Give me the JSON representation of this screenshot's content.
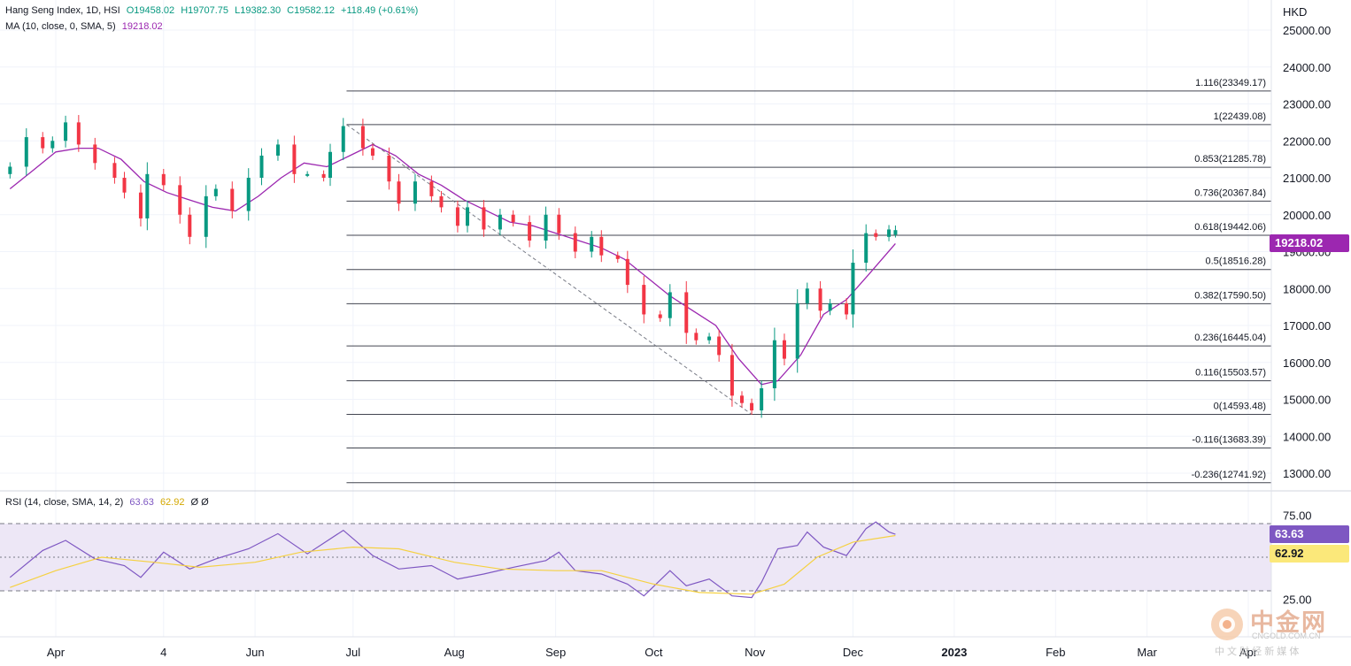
{
  "header": {
    "symbol": "Hang Seng Index, 1D, HSI",
    "open": "O19458.02",
    "high": "H19707.75",
    "low": "L19382.30",
    "close": "C19582.12",
    "change": "+118.49 (+0.61%)",
    "ma_label": "MA (10, close, 0, SMA, 5)",
    "ma_value": "19218.02",
    "currency": "HKD"
  },
  "price_badge": "19218.02",
  "rsi": {
    "label": "RSI (14, close, SMA, 14, 2)",
    "value": "63.63",
    "ma_value": "62.92",
    "extra": "Ø Ø",
    "badge_rsi": "63.63",
    "badge_ma": "62.92",
    "ticks": [
      "75.00",
      "25.00"
    ]
  },
  "watermark": {
    "name": "中金网",
    "domain": "CNGOLD.COM.CN",
    "tagline": "中 文 财 经 新 媒 体"
  },
  "colors": {
    "up": "#089981",
    "down": "#f23645",
    "ma": "#9c27b0",
    "rsi": "#7e57c2",
    "rsi_ma": "#f5d142",
    "rsi_band": "#ede7f6",
    "fib_line": "#434651"
  },
  "chart_data": {
    "type": "candlestick",
    "title": "Hang Seng Index, 1D, HSI",
    "ylabel": "HKD",
    "ylim": [
      12500,
      25300
    ],
    "y_ticks": [
      "25000.00",
      "24000.00",
      "23000.00",
      "22000.00",
      "21000.00",
      "20000.00",
      "19000.00",
      "18000.00",
      "17000.00",
      "16000.00",
      "15000.00",
      "14000.00",
      "13000.00"
    ],
    "x_tick_labels": [
      "Apr",
      "4",
      "Jun",
      "Jul",
      "Aug",
      "Sep",
      "Oct",
      "Nov",
      "Dec",
      "2023",
      "Feb",
      "Mar",
      "Apr"
    ],
    "x_ticks": [
      "2022-04-01",
      "2022-05-04",
      "2022-06-01",
      "2022-07-01",
      "2022-08-01",
      "2022-09-01",
      "2022-10-01",
      "2022-11-01",
      "2022-12-01",
      "2023-01-01",
      "2023-02-01",
      "2023-03-01",
      "2023-04-01"
    ],
    "fibonacci": [
      {
        "label": "1.116(23349.17)",
        "value": 23349.17
      },
      {
        "label": "1(22439.08)",
        "value": 22439.08
      },
      {
        "label": "0.853(21285.78)",
        "value": 21285.78
      },
      {
        "label": "0.736(20367.84)",
        "value": 20367.84
      },
      {
        "label": "0.618(19442.06)",
        "value": 19442.06
      },
      {
        "label": "0.5(18516.28)",
        "value": 18516.28
      },
      {
        "label": "0.382(17590.50)",
        "value": 17590.5
      },
      {
        "label": "0.236(16445.04)",
        "value": 16445.04
      },
      {
        "label": "0.116(15503.57)",
        "value": 15503.57
      },
      {
        "label": "0(14593.48)",
        "value": 14593.48
      },
      {
        "label": "-0.116(13683.39)",
        "value": 13683.39
      },
      {
        "label": "-0.236(12741.92)",
        "value": 12741.92
      }
    ],
    "fib_trendline": {
      "from": [
        "2022-06-29",
        22439.08
      ],
      "to": [
        "2022-10-31",
        14593.48
      ]
    },
    "close_series": [
      [
        "2022-03-18",
        21300
      ],
      [
        "2022-03-23",
        22100
      ],
      [
        "2022-03-28",
        21800
      ],
      [
        "2022-03-31",
        22000
      ],
      [
        "2022-04-04",
        22500
      ],
      [
        "2022-04-08",
        21900
      ],
      [
        "2022-04-13",
        21400
      ],
      [
        "2022-04-19",
        21000
      ],
      [
        "2022-04-22",
        20600
      ],
      [
        "2022-04-27",
        19900
      ],
      [
        "2022-04-29",
        21100
      ],
      [
        "2022-05-04",
        20800
      ],
      [
        "2022-05-09",
        20000
      ],
      [
        "2022-05-12",
        19400
      ],
      [
        "2022-05-17",
        20500
      ],
      [
        "2022-05-20",
        20700
      ],
      [
        "2022-05-25",
        20100
      ],
      [
        "2022-05-30",
        21000
      ],
      [
        "2022-06-03",
        21600
      ],
      [
        "2022-06-08",
        21900
      ],
      [
        "2022-06-13",
        21100
      ],
      [
        "2022-06-17",
        21100
      ],
      [
        "2022-06-22",
        21000
      ],
      [
        "2022-06-24",
        21700
      ],
      [
        "2022-06-28",
        22400
      ],
      [
        "2022-07-04",
        21800
      ],
      [
        "2022-07-07",
        21600
      ],
      [
        "2022-07-12",
        20900
      ],
      [
        "2022-07-15",
        20300
      ],
      [
        "2022-07-20",
        20900
      ],
      [
        "2022-07-25",
        20500
      ],
      [
        "2022-07-28",
        20200
      ],
      [
        "2022-08-02",
        19700
      ],
      [
        "2022-08-05",
        20200
      ],
      [
        "2022-08-10",
        19600
      ],
      [
        "2022-08-15",
        20000
      ],
      [
        "2022-08-19",
        19800
      ],
      [
        "2022-08-24",
        19300
      ],
      [
        "2022-08-29",
        20000
      ],
      [
        "2022-09-02",
        19500
      ],
      [
        "2022-09-07",
        19000
      ],
      [
        "2022-09-12",
        19400
      ],
      [
        "2022-09-15",
        18900
      ],
      [
        "2022-09-20",
        18800
      ],
      [
        "2022-09-23",
        18100
      ],
      [
        "2022-09-28",
        17300
      ],
      [
        "2022-10-03",
        17200
      ],
      [
        "2022-10-06",
        17900
      ],
      [
        "2022-10-11",
        16800
      ],
      [
        "2022-10-14",
        16600
      ],
      [
        "2022-10-18",
        16700
      ],
      [
        "2022-10-21",
        16200
      ],
      [
        "2022-10-25",
        15100
      ],
      [
        "2022-10-28",
        14900
      ],
      [
        "2022-10-31",
        14700
      ],
      [
        "2022-11-03",
        15300
      ],
      [
        "2022-11-07",
        16600
      ],
      [
        "2022-11-10",
        16100
      ],
      [
        "2022-11-14",
        17600
      ],
      [
        "2022-11-17",
        18000
      ],
      [
        "2022-11-21",
        17400
      ],
      [
        "2022-11-24",
        17600
      ],
      [
        "2022-11-29",
        17300
      ],
      [
        "2022-12-01",
        18700
      ],
      [
        "2022-12-05",
        19500
      ],
      [
        "2022-12-08",
        19400
      ],
      [
        "2022-12-12",
        19600
      ],
      [
        "2022-12-14",
        19582.12
      ]
    ],
    "ma_series": [
      [
        "2022-03-18",
        20700
      ],
      [
        "2022-03-25",
        21200
      ],
      [
        "2022-04-01",
        21700
      ],
      [
        "2022-04-08",
        21800
      ],
      [
        "2022-04-14",
        21800
      ],
      [
        "2022-04-21",
        21500
      ],
      [
        "2022-04-28",
        20900
      ],
      [
        "2022-05-05",
        20600
      ],
      [
        "2022-05-12",
        20400
      ],
      [
        "2022-05-19",
        20200
      ],
      [
        "2022-05-26",
        20100
      ],
      [
        "2022-06-02",
        20500
      ],
      [
        "2022-06-09",
        21000
      ],
      [
        "2022-06-16",
        21400
      ],
      [
        "2022-06-23",
        21300
      ],
      [
        "2022-06-30",
        21600
      ],
      [
        "2022-07-07",
        21900
      ],
      [
        "2022-07-14",
        21600
      ],
      [
        "2022-07-21",
        21100
      ],
      [
        "2022-07-28",
        20800
      ],
      [
        "2022-08-04",
        20400
      ],
      [
        "2022-08-11",
        20100
      ],
      [
        "2022-08-18",
        19800
      ],
      [
        "2022-08-25",
        19700
      ],
      [
        "2022-09-01",
        19500
      ],
      [
        "2022-09-08",
        19300
      ],
      [
        "2022-09-15",
        19100
      ],
      [
        "2022-09-22",
        18800
      ],
      [
        "2022-09-29",
        18300
      ],
      [
        "2022-10-06",
        17800
      ],
      [
        "2022-10-13",
        17400
      ],
      [
        "2022-10-20",
        17000
      ],
      [
        "2022-10-27",
        16100
      ],
      [
        "2022-11-03",
        15400
      ],
      [
        "2022-11-08",
        15500
      ],
      [
        "2022-11-15",
        16200
      ],
      [
        "2022-11-22",
        17300
      ],
      [
        "2022-11-29",
        17700
      ],
      [
        "2022-12-06",
        18400
      ],
      [
        "2022-12-14",
        19218.02
      ]
    ],
    "rsi_series": [
      [
        "2022-03-18",
        38
      ],
      [
        "2022-03-28",
        54
      ],
      [
        "2022-04-04",
        60
      ],
      [
        "2022-04-13",
        49
      ],
      [
        "2022-04-22",
        45
      ],
      [
        "2022-04-27",
        38
      ],
      [
        "2022-05-04",
        53
      ],
      [
        "2022-05-12",
        43
      ],
      [
        "2022-05-20",
        49
      ],
      [
        "2022-05-30",
        55
      ],
      [
        "2022-06-08",
        64
      ],
      [
        "2022-06-17",
        52
      ],
      [
        "2022-06-28",
        66
      ],
      [
        "2022-07-07",
        51
      ],
      [
        "2022-07-15",
        43
      ],
      [
        "2022-07-25",
        45
      ],
      [
        "2022-08-02",
        37
      ],
      [
        "2022-08-10",
        40
      ],
      [
        "2022-08-19",
        44
      ],
      [
        "2022-08-29",
        48
      ],
      [
        "2022-09-02",
        53
      ],
      [
        "2022-09-07",
        42
      ],
      [
        "2022-09-15",
        40
      ],
      [
        "2022-09-23",
        34
      ],
      [
        "2022-09-28",
        27
      ],
      [
        "2022-10-06",
        42
      ],
      [
        "2022-10-11",
        33
      ],
      [
        "2022-10-18",
        37
      ],
      [
        "2022-10-25",
        27
      ],
      [
        "2022-10-31",
        26
      ],
      [
        "2022-11-03",
        35
      ],
      [
        "2022-11-08",
        55
      ],
      [
        "2022-11-14",
        57
      ],
      [
        "2022-11-17",
        65
      ],
      [
        "2022-11-22",
        56
      ],
      [
        "2022-11-29",
        51
      ],
      [
        "2022-12-05",
        67
      ],
      [
        "2022-12-08",
        71
      ],
      [
        "2022-12-12",
        65
      ],
      [
        "2022-12-14",
        63.63
      ]
    ],
    "rsi_ma_series": [
      [
        "2022-03-18",
        32
      ],
      [
        "2022-04-01",
        42
      ],
      [
        "2022-04-15",
        50
      ],
      [
        "2022-05-01",
        47
      ],
      [
        "2022-05-15",
        44
      ],
      [
        "2022-06-01",
        47
      ],
      [
        "2022-06-15",
        53
      ],
      [
        "2022-07-01",
        56
      ],
      [
        "2022-07-15",
        55
      ],
      [
        "2022-08-01",
        47
      ],
      [
        "2022-08-15",
        43
      ],
      [
        "2022-09-01",
        42
      ],
      [
        "2022-09-15",
        42
      ],
      [
        "2022-10-01",
        34
      ],
      [
        "2022-10-15",
        29
      ],
      [
        "2022-10-31",
        28
      ],
      [
        "2022-11-10",
        34
      ],
      [
        "2022-11-20",
        50
      ],
      [
        "2022-12-01",
        59
      ],
      [
        "2022-12-14",
        62.92
      ]
    ],
    "rsi_ylim": [
      20,
      80
    ],
    "rsi_levels": [
      70,
      50,
      30
    ],
    "last": {
      "open": 19458.02,
      "high": 19707.75,
      "low": 19382.3,
      "close": 19582.12,
      "ma": 19218.02
    }
  }
}
